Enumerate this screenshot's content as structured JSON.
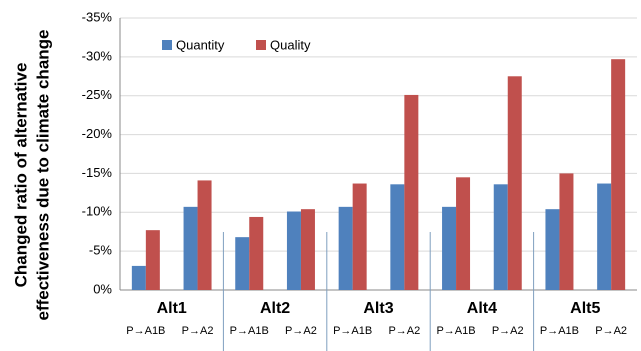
{
  "chart_data": {
    "type": "bar",
    "y_label": [
      "Changed ratio of alternative",
      "effectiveness due to climate change"
    ],
    "groups": [
      "Alt1",
      "Alt2",
      "Alt3",
      "Alt4",
      "Alt5"
    ],
    "categories": [
      "P→A1B",
      "P→A2",
      "P→A1B",
      "P→A2",
      "P→A1B",
      "P→A2",
      "P→A1B",
      "P→A2",
      "P→A1B",
      "P→A2"
    ],
    "series": [
      {
        "name": "Quantity",
        "color": "#4f81bd",
        "values": [
          -3.1,
          -10.7,
          -6.8,
          -10.1,
          -10.7,
          -13.6,
          -10.7,
          -13.6,
          -10.4,
          -13.7
        ]
      },
      {
        "name": "Quality",
        "color": "#c0504d",
        "values": [
          -7.7,
          -14.1,
          -9.4,
          -10.4,
          -13.7,
          -25.1,
          -14.5,
          -27.5,
          -15.0,
          -29.7
        ]
      }
    ],
    "ylim": [
      0,
      -35
    ],
    "yticks": [
      {
        "value": 0,
        "label": "0%"
      },
      {
        "value": -5,
        "label": "-5%"
      },
      {
        "value": -10,
        "label": "-10%"
      },
      {
        "value": -15,
        "label": "-15%"
      },
      {
        "value": -20,
        "label": "-20%"
      },
      {
        "value": -25,
        "label": "-25%"
      },
      {
        "value": -30,
        "label": "-30%"
      },
      {
        "value": -35,
        "label": "-35%"
      }
    ],
    "grid": true
  }
}
